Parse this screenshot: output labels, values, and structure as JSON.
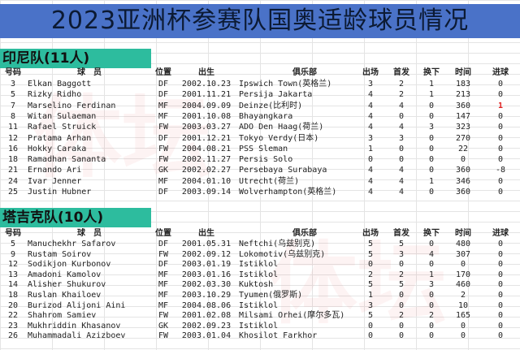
{
  "title": "2023亚洲杯参赛队国奥适龄球员情况",
  "headers": {
    "num": "号码",
    "name": "球　员",
    "pos": "位置",
    "birth": "出生",
    "club": "俱乐部",
    "apps": "出场",
    "starts": "首发",
    "subs": "换下",
    "mins": "时间",
    "goals": "进球"
  },
  "colors": {
    "title_bg": "#4a72c8",
    "section_bg": "#2dbc9e",
    "highlight": "#e02020"
  },
  "teams": [
    {
      "label": "印尼队(11人)",
      "players": [
        [
          "3",
          "Elkan Baggott",
          "DF",
          "2002.10.23",
          "Ipswich Town(英格兰)",
          "3",
          "2",
          "1",
          "183",
          "0"
        ],
        [
          "5",
          "Rizky Ridho",
          "DF",
          "2001.11.21",
          "Persija Jakarta",
          "4",
          "2",
          "1",
          "213",
          "0"
        ],
        [
          "7",
          "Marselino Ferdinan",
          "MF",
          "2004.09.09",
          "Deinze(比利时)",
          "4",
          "4",
          "0",
          "360",
          "1"
        ],
        [
          "8",
          "Witan Sulaeman",
          "MF",
          "2001.10.08",
          "Bhayangkara",
          "4",
          "0",
          "0",
          "147",
          "0"
        ],
        [
          "11",
          "Rafael Struick",
          "FW",
          "2003.03.27",
          "ADO Den Haag(荷兰)",
          "4",
          "4",
          "3",
          "323",
          "0"
        ],
        [
          "12",
          "Pratama Arhan",
          "DF",
          "2001.12.21",
          "Tokyo Verdy(日本)",
          "3",
          "3",
          "0",
          "270",
          "0"
        ],
        [
          "16",
          "Hokky Caraka",
          "FW",
          "2004.08.21",
          "PSS Sleman",
          "1",
          "0",
          "0",
          "22",
          "0"
        ],
        [
          "18",
          "Ramadhan Sananta",
          "FW",
          "2002.11.27",
          "Persis Solo",
          "0",
          "0",
          "0",
          "0",
          "0"
        ],
        [
          "21",
          "Ernando Ari",
          "GK",
          "2002.02.27",
          "Persebaya Surabaya",
          "4",
          "4",
          "0",
          "360",
          "-8"
        ],
        [
          "24",
          "Ivar Jenner",
          "MF",
          "2004.01.10",
          "Utrecht(荷兰)",
          "4",
          "4",
          "1",
          "346",
          "0"
        ],
        [
          "25",
          "Justin Hubner",
          "DF",
          "2003.09.14",
          "Wolverhampton(英格兰)",
          "4",
          "4",
          "0",
          "360",
          "0"
        ]
      ]
    },
    {
      "label": "塔吉克队(10人)",
      "players": [
        [
          "5",
          "Manuchekhr Safarov",
          "DF",
          "2001.05.31",
          "Neftchi(乌兹别克)",
          "5",
          "5",
          "0",
          "480",
          "0"
        ],
        [
          "9",
          "Rustam Soirov",
          "FW",
          "2002.09.12",
          "Lokomotiv(乌兹别克)",
          "5",
          "3",
          "4",
          "307",
          "0"
        ],
        [
          "12",
          "Sodikjon Kurbonov",
          "DF",
          "2003.01.19",
          "Istiklol",
          "0",
          "0",
          "0",
          "0",
          "0"
        ],
        [
          "13",
          "Amadoni Kamolov",
          "MF",
          "2003.01.16",
          "Istiklol",
          "2",
          "2",
          "1",
          "170",
          "0"
        ],
        [
          "14",
          "Alisher Shukurov",
          "MF",
          "2002.03.30",
          "Kuktosh",
          "5",
          "5",
          "3",
          "460",
          "0"
        ],
        [
          "18",
          "Ruslan Khailoev",
          "MF",
          "2003.10.29",
          "Tyumen(俄罗斯)",
          "1",
          "0",
          "0",
          "2",
          "0"
        ],
        [
          "20",
          "Burizod Alijoni Aini",
          "MF",
          "2004.08.06",
          "Istiklol",
          "3",
          "0",
          "0",
          "10",
          "0"
        ],
        [
          "22",
          "Shahrom Samiev",
          "FW",
          "2001.02.08",
          "Milsami Orhei(摩尔多瓦)",
          "5",
          "2",
          "2",
          "165",
          "0"
        ],
        [
          "23",
          "Mukhriddin Khasanov",
          "GK",
          "2002.09.23",
          "Istiklol",
          "0",
          "0",
          "0",
          "0",
          "0"
        ],
        [
          "26",
          "Muhammadali Azizboev",
          "FW",
          "2003.01.04",
          "Khosilot Farkhor",
          "0",
          "0",
          "0",
          "0",
          "0"
        ]
      ]
    }
  ]
}
